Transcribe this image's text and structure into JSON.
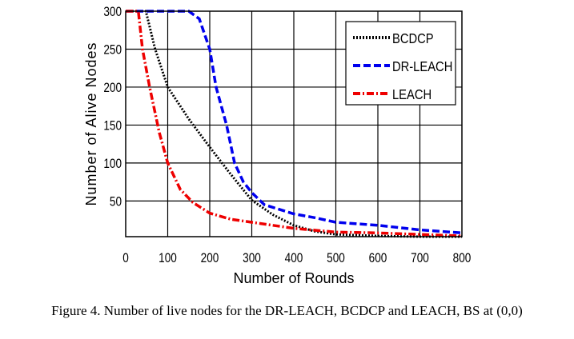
{
  "chart_data": {
    "type": "line",
    "title": "",
    "xlabel": "Number of Rounds",
    "ylabel": "Number of Alive Nodes",
    "xlim": [
      0,
      800
    ],
    "ylim": [
      3,
      300
    ],
    "xticks": [
      0,
      100,
      200,
      300,
      400,
      500,
      600,
      700,
      800
    ],
    "yticks": [
      50,
      100,
      150,
      200,
      250,
      300
    ],
    "grid": true,
    "legend_position": "top-right",
    "series": [
      {
        "name": "BCDCP",
        "color": "#000000",
        "style": "dotted",
        "x": [
          0,
          48,
          70,
          100,
          150,
          200,
          250,
          300,
          350,
          400,
          450,
          500,
          600,
          700,
          800
        ],
        "y": [
          300,
          300,
          250,
          200,
          158,
          121,
          85,
          51,
          32,
          18,
          10,
          6,
          4,
          3,
          3
        ]
      },
      {
        "name": "DR-LEACH",
        "color": "#0000ee",
        "style": "dashed",
        "x": [
          0,
          150,
          175,
          200,
          215,
          240,
          259,
          280,
          300,
          330,
          400,
          450,
          500,
          600,
          700,
          800
        ],
        "y": [
          300,
          300,
          290,
          250,
          200,
          150,
          100,
          75,
          61,
          45,
          33,
          28,
          22,
          18,
          12,
          8
        ]
      },
      {
        "name": "LEACH",
        "color": "#ee0000",
        "style": "dashdot",
        "x": [
          0,
          30,
          40,
          57,
          80,
          100,
          130,
          160,
          200,
          250,
          300,
          350,
          400,
          500,
          600,
          700,
          800
        ],
        "y": [
          300,
          300,
          250,
          200,
          140,
          100,
          65,
          48,
          34,
          26,
          22,
          18,
          14,
          9,
          8,
          6,
          4
        ]
      }
    ]
  },
  "caption": "Figure 4. Number of live nodes for the DR-LEACH, BCDCP and LEACH, BS at (0,0)"
}
